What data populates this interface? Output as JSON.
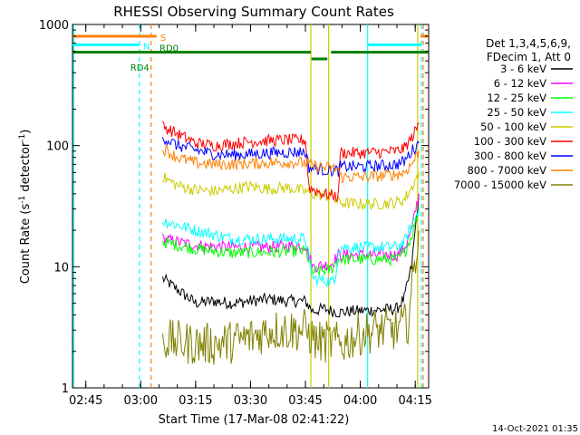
{
  "chart_data": {
    "type": "line",
    "title": "RHESSI Observing Summary Count Rates",
    "xlabel": "Start Time (17-Mar-08 02:41:22)",
    "ylabel_parts": {
      "pre": "Count Rate (s",
      "sup1": "-1",
      "mid": " detector",
      "sup2": "-1",
      "post": ")"
    },
    "footer_date": "14-Oct-2021 01:35",
    "y_scale": "log",
    "ylim": [
      1,
      1000
    ],
    "y_ticks": [
      {
        "value": 1,
        "label": "1"
      },
      {
        "value": 10,
        "label": "10"
      },
      {
        "value": 100,
        "label": "100"
      },
      {
        "value": 1000,
        "label": "1000"
      }
    ],
    "xlim": [
      "02:41:22",
      "04:18:40"
    ],
    "x_ticks": [
      "02:45",
      "03:00",
      "03:15",
      "03:30",
      "03:45",
      "04:00",
      "04:15"
    ],
    "legend": {
      "position": "right",
      "header": [
        "Det 1,3,4,5,6,9,",
        "FDecim 1, Att 0"
      ]
    },
    "series": [
      {
        "name": "3 - 6 keV",
        "color": "#000000",
        "points": [
          [
            "03:06",
            8
          ],
          [
            "03:10",
            6.5
          ],
          [
            "03:15",
            5
          ],
          [
            "03:20",
            5.2
          ],
          [
            "03:25",
            5
          ],
          [
            "03:30",
            5.2
          ],
          [
            "03:35",
            5.4
          ],
          [
            "03:40",
            5.2
          ],
          [
            "03:45",
            5.2
          ],
          [
            "03:47",
            4.3
          ],
          [
            "03:50",
            4.5
          ],
          [
            "03:54",
            4.2
          ],
          [
            "03:58",
            4.3
          ],
          [
            "04:05",
            4.4
          ],
          [
            "04:10",
            4.5
          ],
          [
            "04:12",
            5.5
          ],
          [
            "04:14",
            10
          ],
          [
            "04:15",
            20
          ],
          [
            "04:16",
            40
          ]
        ]
      },
      {
        "name": "6 - 12 keV",
        "color": "#ff00ff",
        "points": [
          [
            "03:06",
            17
          ],
          [
            "03:15",
            15
          ],
          [
            "03:25",
            14.5
          ],
          [
            "03:35",
            14.5
          ],
          [
            "03:45",
            15
          ],
          [
            "03:47",
            10
          ],
          [
            "03:52",
            10.5
          ],
          [
            "03:54",
            12.5
          ],
          [
            "04:00",
            12.5
          ],
          [
            "04:10",
            12.5
          ],
          [
            "04:12",
            14
          ],
          [
            "04:14",
            20
          ],
          [
            "04:16",
            40
          ]
        ]
      },
      {
        "name": "12 - 25 keV",
        "color": "#00ff00",
        "points": [
          [
            "03:06",
            16
          ],
          [
            "03:15",
            14
          ],
          [
            "03:25",
            13
          ],
          [
            "03:35",
            13.2
          ],
          [
            "03:45",
            13.5
          ],
          [
            "03:47",
            9
          ],
          [
            "03:52",
            9.5
          ],
          [
            "03:54",
            11.5
          ],
          [
            "04:00",
            11.5
          ],
          [
            "04:10",
            11.5
          ],
          [
            "04:12",
            13
          ],
          [
            "04:14",
            18
          ],
          [
            "04:16",
            30
          ]
        ]
      },
      {
        "name": "25 - 50 keV",
        "color": "#00ffff",
        "points": [
          [
            "03:06",
            24
          ],
          [
            "03:15",
            20
          ],
          [
            "03:25",
            17
          ],
          [
            "03:35",
            17
          ],
          [
            "03:45",
            17
          ],
          [
            "03:47",
            8
          ],
          [
            "03:53",
            7.5
          ],
          [
            "03:54",
            14.5
          ],
          [
            "04:00",
            14.5
          ],
          [
            "04:10",
            14.5
          ],
          [
            "04:12",
            16
          ],
          [
            "04:14",
            22
          ],
          [
            "04:16",
            30
          ]
        ]
      },
      {
        "name": "50 - 100 keV",
        "color": "#cccc00",
        "points": [
          [
            "03:06",
            55
          ],
          [
            "03:10",
            47
          ],
          [
            "03:15",
            43
          ],
          [
            "03:20",
            42
          ],
          [
            "03:25",
            44
          ],
          [
            "03:30",
            46
          ],
          [
            "03:35",
            44
          ],
          [
            "03:40",
            45
          ],
          [
            "03:45",
            42
          ],
          [
            "03:47",
            40
          ],
          [
            "03:52",
            38
          ],
          [
            "03:54",
            34
          ],
          [
            "03:58",
            33
          ],
          [
            "04:05",
            33
          ],
          [
            "04:10",
            34
          ],
          [
            "04:12",
            36
          ],
          [
            "04:14",
            45
          ],
          [
            "04:16",
            60
          ]
        ]
      },
      {
        "name": "100 - 300 keV",
        "color": "#ff0000",
        "points": [
          [
            "03:06",
            145
          ],
          [
            "03:10",
            125
          ],
          [
            "03:15",
            105
          ],
          [
            "03:20",
            100
          ],
          [
            "03:25",
            104
          ],
          [
            "03:30",
            108
          ],
          [
            "03:35",
            110
          ],
          [
            "03:40",
            111
          ],
          [
            "03:45",
            111
          ],
          [
            "03:46",
            45
          ],
          [
            "03:50",
            40
          ],
          [
            "03:54",
            38
          ],
          [
            "03:54.5",
            87
          ],
          [
            "04:00",
            87
          ],
          [
            "04:05",
            88
          ],
          [
            "04:10",
            90
          ],
          [
            "04:12",
            95
          ],
          [
            "04:14",
            115
          ],
          [
            "04:16",
            150
          ]
        ]
      },
      {
        "name": "300 - 800 keV",
        "color": "#0000ff",
        "points": [
          [
            "03:06",
            118
          ],
          [
            "03:10",
            100
          ],
          [
            "03:15",
            92
          ],
          [
            "03:20",
            85
          ],
          [
            "03:25",
            84
          ],
          [
            "03:30",
            85
          ],
          [
            "03:35",
            87
          ],
          [
            "03:40",
            88
          ],
          [
            "03:45",
            89
          ],
          [
            "03:46",
            66
          ],
          [
            "03:50",
            63
          ],
          [
            "03:54",
            62
          ],
          [
            "03:54.5",
            67
          ],
          [
            "04:00",
            67
          ],
          [
            "04:05",
            68
          ],
          [
            "04:10",
            70
          ],
          [
            "04:12",
            74
          ],
          [
            "04:14",
            90
          ],
          [
            "04:16",
            105
          ]
        ]
      },
      {
        "name": "800 - 7000 keV",
        "color": "#ff8000",
        "points": [
          [
            "03:06",
            95
          ],
          [
            "03:10",
            80
          ],
          [
            "03:15",
            72
          ],
          [
            "03:20",
            70
          ],
          [
            "03:25",
            70
          ],
          [
            "03:30",
            71
          ],
          [
            "03:35",
            72
          ],
          [
            "03:40",
            73
          ],
          [
            "03:45",
            72
          ],
          [
            "03:47",
            68
          ],
          [
            "03:50",
            66
          ],
          [
            "03:54",
            64
          ],
          [
            "03:54.5",
            55
          ],
          [
            "04:00",
            55
          ],
          [
            "04:05",
            56
          ],
          [
            "04:10",
            58
          ],
          [
            "04:12",
            60
          ],
          [
            "04:14",
            70
          ],
          [
            "04:16",
            90
          ]
        ]
      },
      {
        "name": "7000 - 15000 keV",
        "color": "#808000",
        "points": [
          [
            "03:06",
            2.5
          ],
          [
            "03:10",
            2.4
          ],
          [
            "03:15",
            2.3
          ],
          [
            "03:20",
            2.3
          ],
          [
            "03:25",
            2.4
          ],
          [
            "03:30",
            2.6
          ],
          [
            "03:35",
            3.0
          ],
          [
            "03:40",
            3.0
          ],
          [
            "03:45",
            3.0
          ],
          [
            "03:48",
            2.4
          ],
          [
            "03:52",
            2.4
          ],
          [
            "03:55",
            2.3
          ],
          [
            "04:00",
            2.8
          ],
          [
            "04:05",
            3.0
          ],
          [
            "04:10",
            3.0
          ],
          [
            "04:13",
            3.5
          ],
          [
            "04:16",
            20
          ]
        ]
      }
    ],
    "flag_bars": [
      {
        "label": "S",
        "color": "#ff8000",
        "value": 800,
        "segments": [
          [
            "02:41:22",
            "03:04:20"
          ],
          [
            "04:16:30",
            "04:18:40"
          ]
        ]
      },
      {
        "label": "N",
        "color": "#00ffff",
        "value": 680,
        "segments": [
          [
            "02:41:22",
            "02:59:40"
          ],
          [
            "04:02:00",
            "04:16:40"
          ]
        ]
      },
      {
        "label": "RD0",
        "color": "#008000",
        "value": 590,
        "segments": [
          [
            "02:41:22",
            "03:46:30"
          ],
          [
            "03:52:00",
            "04:18:40"
          ]
        ]
      },
      {
        "label": "RD4",
        "color": "#008000",
        "value": 520,
        "segments": [
          [
            "03:46:40",
            "03:51:00"
          ]
        ]
      }
    ],
    "vertical_markers": [
      {
        "time": "02:41:40",
        "color": "#00ffff",
        "dash": false
      },
      {
        "time": "02:59:40",
        "color": "#00ffff",
        "dash": true
      },
      {
        "time": "03:02:50",
        "color": "#ff8000",
        "dash": true
      },
      {
        "time": "03:46:30",
        "color": "#cccc00",
        "dash": false
      },
      {
        "time": "03:51:20",
        "color": "#cccc00",
        "dash": false
      },
      {
        "time": "04:02:00",
        "color": "#00ffff",
        "dash": false
      },
      {
        "time": "04:15:40",
        "color": "#cccc00",
        "dash": false
      },
      {
        "time": "04:16:40",
        "color": "#00ffff",
        "dash": true
      },
      {
        "time": "04:17:10",
        "color": "#ff8000",
        "dash": true
      }
    ]
  }
}
